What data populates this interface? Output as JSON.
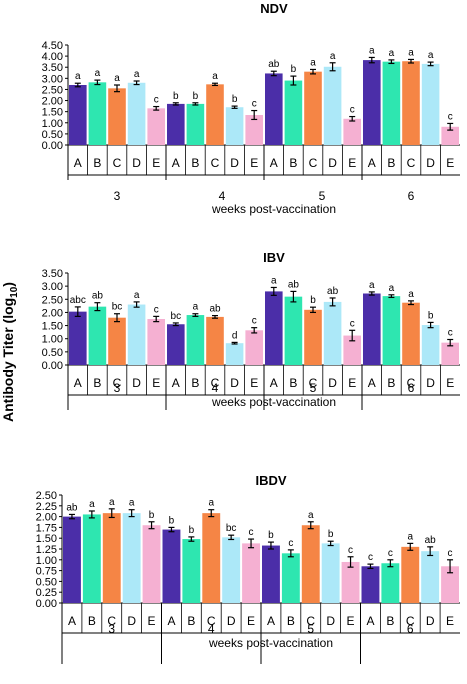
{
  "figure": {
    "ylabel_main": "Antibody Titer (log",
    "ylabel_sub": "10",
    "ylabel_close": ")"
  },
  "colors": {
    "A": "#4b2ea8",
    "B": "#2ee6b0",
    "C": "#f58545",
    "D": "#ace8f8",
    "E": "#f5b0d2"
  },
  "chart_data": [
    {
      "type": "bar",
      "title": "NDV",
      "xlabel": "weeks post-vaccination",
      "ylabel": "",
      "ylim": [
        0,
        4.5
      ],
      "yticks": [
        "0.00",
        "0.50",
        "1.00",
        "1.50",
        "2.00",
        "2.50",
        "3.00",
        "3.50",
        "4.00",
        "4.50"
      ],
      "groups": [
        "3",
        "4",
        "5",
        "6"
      ],
      "bar_labels": [
        "A",
        "B",
        "C",
        "D",
        "E"
      ],
      "series": [
        {
          "group": "3",
          "values": [
            2.7,
            2.82,
            2.55,
            2.8,
            1.65
          ],
          "errors": [
            0.08,
            0.1,
            0.15,
            0.08,
            0.08
          ],
          "letters": [
            "a",
            "a",
            "a",
            "a",
            "c"
          ]
        },
        {
          "group": "4",
          "values": [
            1.85,
            1.85,
            2.73,
            1.7,
            1.35
          ],
          "errors": [
            0.05,
            0.05,
            0.05,
            0.05,
            0.2
          ],
          "letters": [
            "b",
            "b",
            "a",
            "b",
            "c"
          ]
        },
        {
          "group": "5",
          "values": [
            3.22,
            2.9,
            3.3,
            3.52,
            1.18
          ],
          "errors": [
            0.1,
            0.2,
            0.1,
            0.18,
            0.1
          ],
          "letters": [
            "ab",
            "b",
            "a",
            "a",
            "c"
          ]
        },
        {
          "group": "6",
          "values": [
            3.82,
            3.75,
            3.77,
            3.65,
            0.82
          ],
          "errors": [
            0.12,
            0.08,
            0.08,
            0.08,
            0.15
          ],
          "letters": [
            "a",
            "a",
            "a",
            "a",
            "c"
          ]
        }
      ]
    },
    {
      "type": "bar",
      "title": "IBV",
      "xlabel": "weeks post-vaccination",
      "ylabel": "",
      "ylim": [
        0,
        3.5
      ],
      "yticks": [
        "0.00",
        "0.50",
        "1.00",
        "1.50",
        "2.00",
        "2.50",
        "3.00",
        "3.50"
      ],
      "groups": [
        "3",
        "4",
        "5",
        "6"
      ],
      "bar_labels": [
        "A",
        "B",
        "C",
        "D",
        "E"
      ],
      "series": [
        {
          "group": "3",
          "values": [
            2.03,
            2.22,
            1.8,
            2.3,
            1.75
          ],
          "errors": [
            0.18,
            0.15,
            0.15,
            0.1,
            0.1
          ],
          "letters": [
            "abc",
            "ab",
            "bc",
            "a",
            "c"
          ]
        },
        {
          "group": "4",
          "values": [
            1.55,
            1.9,
            1.83,
            0.83,
            1.32
          ],
          "errors": [
            0.05,
            0.05,
            0.05,
            0.03,
            0.1
          ],
          "letters": [
            "bc",
            "a",
            "ab",
            "d",
            "c"
          ]
        },
        {
          "group": "5",
          "values": [
            2.8,
            2.6,
            2.1,
            2.4,
            1.12
          ],
          "errors": [
            0.15,
            0.2,
            0.1,
            0.15,
            0.2
          ],
          "letters": [
            "a",
            "ab",
            "b",
            "ab",
            "c"
          ]
        },
        {
          "group": "6",
          "values": [
            2.72,
            2.62,
            2.37,
            1.52,
            0.85
          ],
          "errors": [
            0.06,
            0.05,
            0.07,
            0.1,
            0.12
          ],
          "letters": [
            "a",
            "a",
            "a",
            "b",
            "c"
          ]
        }
      ]
    },
    {
      "type": "bar",
      "title": "IBDV",
      "xlabel": "weeks post-vaccination",
      "ylabel": "",
      "ylim": [
        0,
        2.5
      ],
      "yticks": [
        "0.00",
        "0.25",
        "0.50",
        "0.75",
        "1.00",
        "1.25",
        "1.50",
        "1.75",
        "2.00",
        "2.25",
        "2.50"
      ],
      "groups": [
        "3",
        "4",
        "5",
        "6"
      ],
      "bar_labels": [
        "A",
        "B",
        "C",
        "D",
        "E"
      ],
      "series": [
        {
          "group": "3",
          "values": [
            2.0,
            2.05,
            2.08,
            2.08,
            1.8
          ],
          "errors": [
            0.05,
            0.08,
            0.1,
            0.08,
            0.08
          ],
          "letters": [
            "ab",
            "a",
            "a",
            "a",
            "b"
          ]
        },
        {
          "group": "4",
          "values": [
            1.7,
            1.48,
            2.08,
            1.52,
            1.38
          ],
          "errors": [
            0.05,
            0.05,
            0.08,
            0.05,
            0.1
          ],
          "letters": [
            "b",
            "b",
            "a",
            "bc",
            "c"
          ]
        },
        {
          "group": "5",
          "values": [
            1.33,
            1.15,
            1.8,
            1.38,
            0.95
          ],
          "errors": [
            0.08,
            0.08,
            0.08,
            0.05,
            0.12
          ],
          "letters": [
            "b",
            "c",
            "a",
            "b",
            "c"
          ]
        },
        {
          "group": "6",
          "values": [
            0.85,
            0.92,
            1.3,
            1.2,
            0.85
          ],
          "errors": [
            0.05,
            0.08,
            0.08,
            0.1,
            0.15
          ],
          "letters": [
            "c",
            "c",
            "a",
            "ab",
            "c"
          ]
        }
      ]
    }
  ]
}
